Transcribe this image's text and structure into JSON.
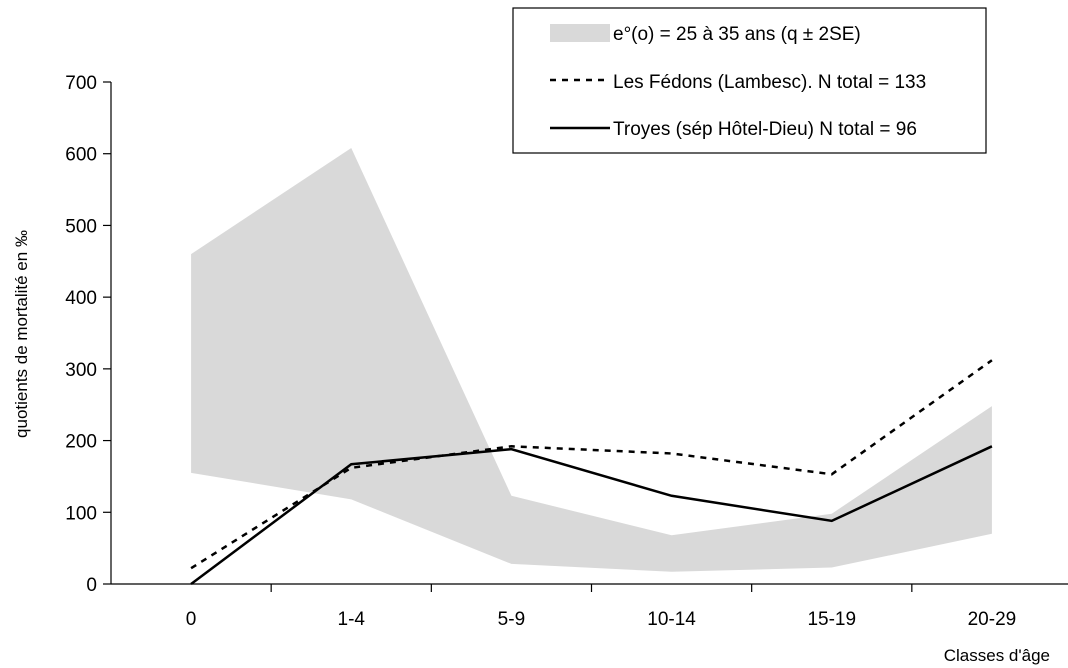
{
  "chart_data": {
    "type": "line",
    "categories": [
      "0",
      "1-4",
      "5-9",
      "10-14",
      "15-19",
      "20-29"
    ],
    "xlabel": "Classes d'âge",
    "ylabel": "quotients de mortalité en ‰",
    "ylim": [
      0,
      700
    ],
    "yticks": [
      0,
      100,
      200,
      300,
      400,
      500,
      600,
      700
    ],
    "grid": false,
    "legend_position": "top-right",
    "band": {
      "name": "e°(o) = 25 à 35 ans (q ± 2SE)",
      "upper": [
        460,
        608,
        123,
        68,
        98,
        248
      ],
      "lower": [
        155,
        118,
        28,
        17,
        23,
        70
      ],
      "color": "#d9d9d9"
    },
    "series": [
      {
        "name": "Les Fédons (Lambesc). N total = 133",
        "values": [
          22,
          162,
          192,
          182,
          153,
          312
        ],
        "style": "dashed",
        "color": "#000000"
      },
      {
        "name": "Troyes (sép Hôtel-Dieu) N total = 96",
        "values": [
          0,
          167,
          188,
          123,
          88,
          192
        ],
        "style": "solid",
        "color": "#000000"
      }
    ]
  }
}
